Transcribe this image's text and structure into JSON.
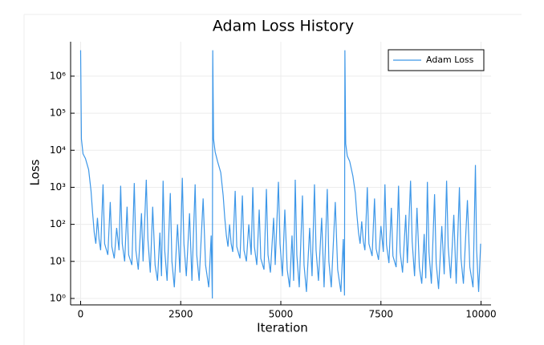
{
  "chart_data": {
    "type": "line",
    "title": "Adam Loss History",
    "xlabel": "Iteration",
    "ylabel": "Loss",
    "log_y": true,
    "grid": true,
    "legend": "top-right",
    "xlim": [
      -250,
      10250
    ],
    "ylim": [
      0.67,
      8500000
    ],
    "xticks": [
      0,
      2500,
      5000,
      7500,
      10000
    ],
    "yticks": [
      {
        "value": 1,
        "label": "10⁰"
      },
      {
        "value": 10,
        "label": "10¹"
      },
      {
        "value": 100,
        "label": "10²"
      },
      {
        "value": 1000,
        "label": "10³"
      },
      {
        "value": 10000,
        "label": "10⁴"
      },
      {
        "value": 100000,
        "label": "10⁵"
      },
      {
        "value": 1000000,
        "label": "10⁶"
      }
    ],
    "x": [
      0,
      20,
      60,
      120,
      200,
      260,
      300,
      340,
      380,
      420,
      460,
      500,
      560,
      600,
      680,
      740,
      780,
      840,
      900,
      960,
      1000,
      1040,
      1100,
      1160,
      1200,
      1280,
      1340,
      1380,
      1440,
      1520,
      1560,
      1640,
      1680,
      1740,
      1800,
      1860,
      1920,
      1980,
      2020,
      2060,
      2100,
      2160,
      2240,
      2280,
      2340,
      2420,
      2480,
      2540,
      2580,
      2640,
      2720,
      2780,
      2860,
      2900,
      2960,
      3060,
      3120,
      3200,
      3260,
      3290,
      3300,
      3320,
      3360,
      3420,
      3500,
      3560,
      3600,
      3640,
      3680,
      3720,
      3760,
      3800,
      3860,
      3900,
      3980,
      4040,
      4080,
      4140,
      4200,
      4260,
      4300,
      4340,
      4400,
      4460,
      4500,
      4580,
      4640,
      4680,
      4740,
      4820,
      4860,
      4940,
      4980,
      5040,
      5100,
      5160,
      5220,
      5280,
      5320,
      5360,
      5400,
      5460,
      5540,
      5580,
      5640,
      5720,
      5780,
      5840,
      5880,
      5940,
      6020,
      6080,
      6160,
      6200,
      6260,
      6360,
      6420,
      6500,
      6560,
      6590,
      6600,
      6620,
      6660,
      6720,
      6800,
      6860,
      6900,
      6940,
      6980,
      7020,
      7060,
      7100,
      7160,
      7200,
      7280,
      7340,
      7380,
      7440,
      7500,
      7560,
      7600,
      7640,
      7700,
      7760,
      7800,
      7880,
      7940,
      7980,
      8040,
      8120,
      8160,
      8240,
      8280,
      8340,
      8400,
      8460,
      8520,
      8580,
      8620,
      8660,
      8700,
      8760,
      8840,
      8880,
      8940,
      9020,
      9080,
      9140,
      9180,
      9240,
      9320,
      9380,
      9460,
      9500,
      9560,
      9660,
      9720,
      9800,
      9860,
      9890,
      9940,
      9990
    ],
    "series": [
      {
        "name": "Adam Loss",
        "color": "#3d97e8",
        "values": [
          5000000,
          20000,
          8000,
          6000,
          3000,
          800,
          200,
          60,
          30,
          150,
          40,
          20,
          1200,
          30,
          15,
          400,
          25,
          12,
          80,
          20,
          1100,
          30,
          10,
          300,
          15,
          8,
          1300,
          20,
          6,
          200,
          10,
          1600,
          40,
          5,
          300,
          8,
          3,
          60,
          4,
          1500,
          20,
          3,
          700,
          10,
          2,
          100,
          5,
          1800,
          30,
          4,
          200,
          3,
          1200,
          15,
          3,
          500,
          8,
          2,
          50,
          1,
          5000000,
          20000,
          9000,
          5000,
          2500,
          600,
          150,
          50,
          25,
          100,
          30,
          18,
          800,
          25,
          12,
          600,
          20,
          10,
          100,
          15,
          1000,
          25,
          8,
          250,
          12,
          6,
          900,
          15,
          5,
          150,
          8,
          1400,
          30,
          4,
          250,
          6,
          2,
          50,
          3,
          1600,
          15,
          2,
          600,
          8,
          1.5,
          80,
          4,
          1200,
          20,
          3,
          150,
          2,
          900,
          10,
          2,
          400,
          6,
          1.5,
          40,
          1.2,
          5000000,
          15000,
          7000,
          5000,
          2000,
          700,
          180,
          60,
          30,
          120,
          35,
          20,
          1000,
          30,
          14,
          500,
          22,
          11,
          90,
          18,
          1200,
          28,
          9,
          280,
          14,
          7,
          1100,
          18,
          5,
          180,
          9,
          1500,
          35,
          4,
          280,
          7,
          2.5,
          55,
          3.5,
          1400,
          18,
          2.5,
          650,
          9,
          1.8,
          90,
          4.5,
          1500,
          25,
          3.5,
          180,
          2.5,
          1000,
          12,
          2.5,
          450,
          7,
          2,
          4000,
          20,
          1.5,
          30
        ]
      }
    ]
  }
}
